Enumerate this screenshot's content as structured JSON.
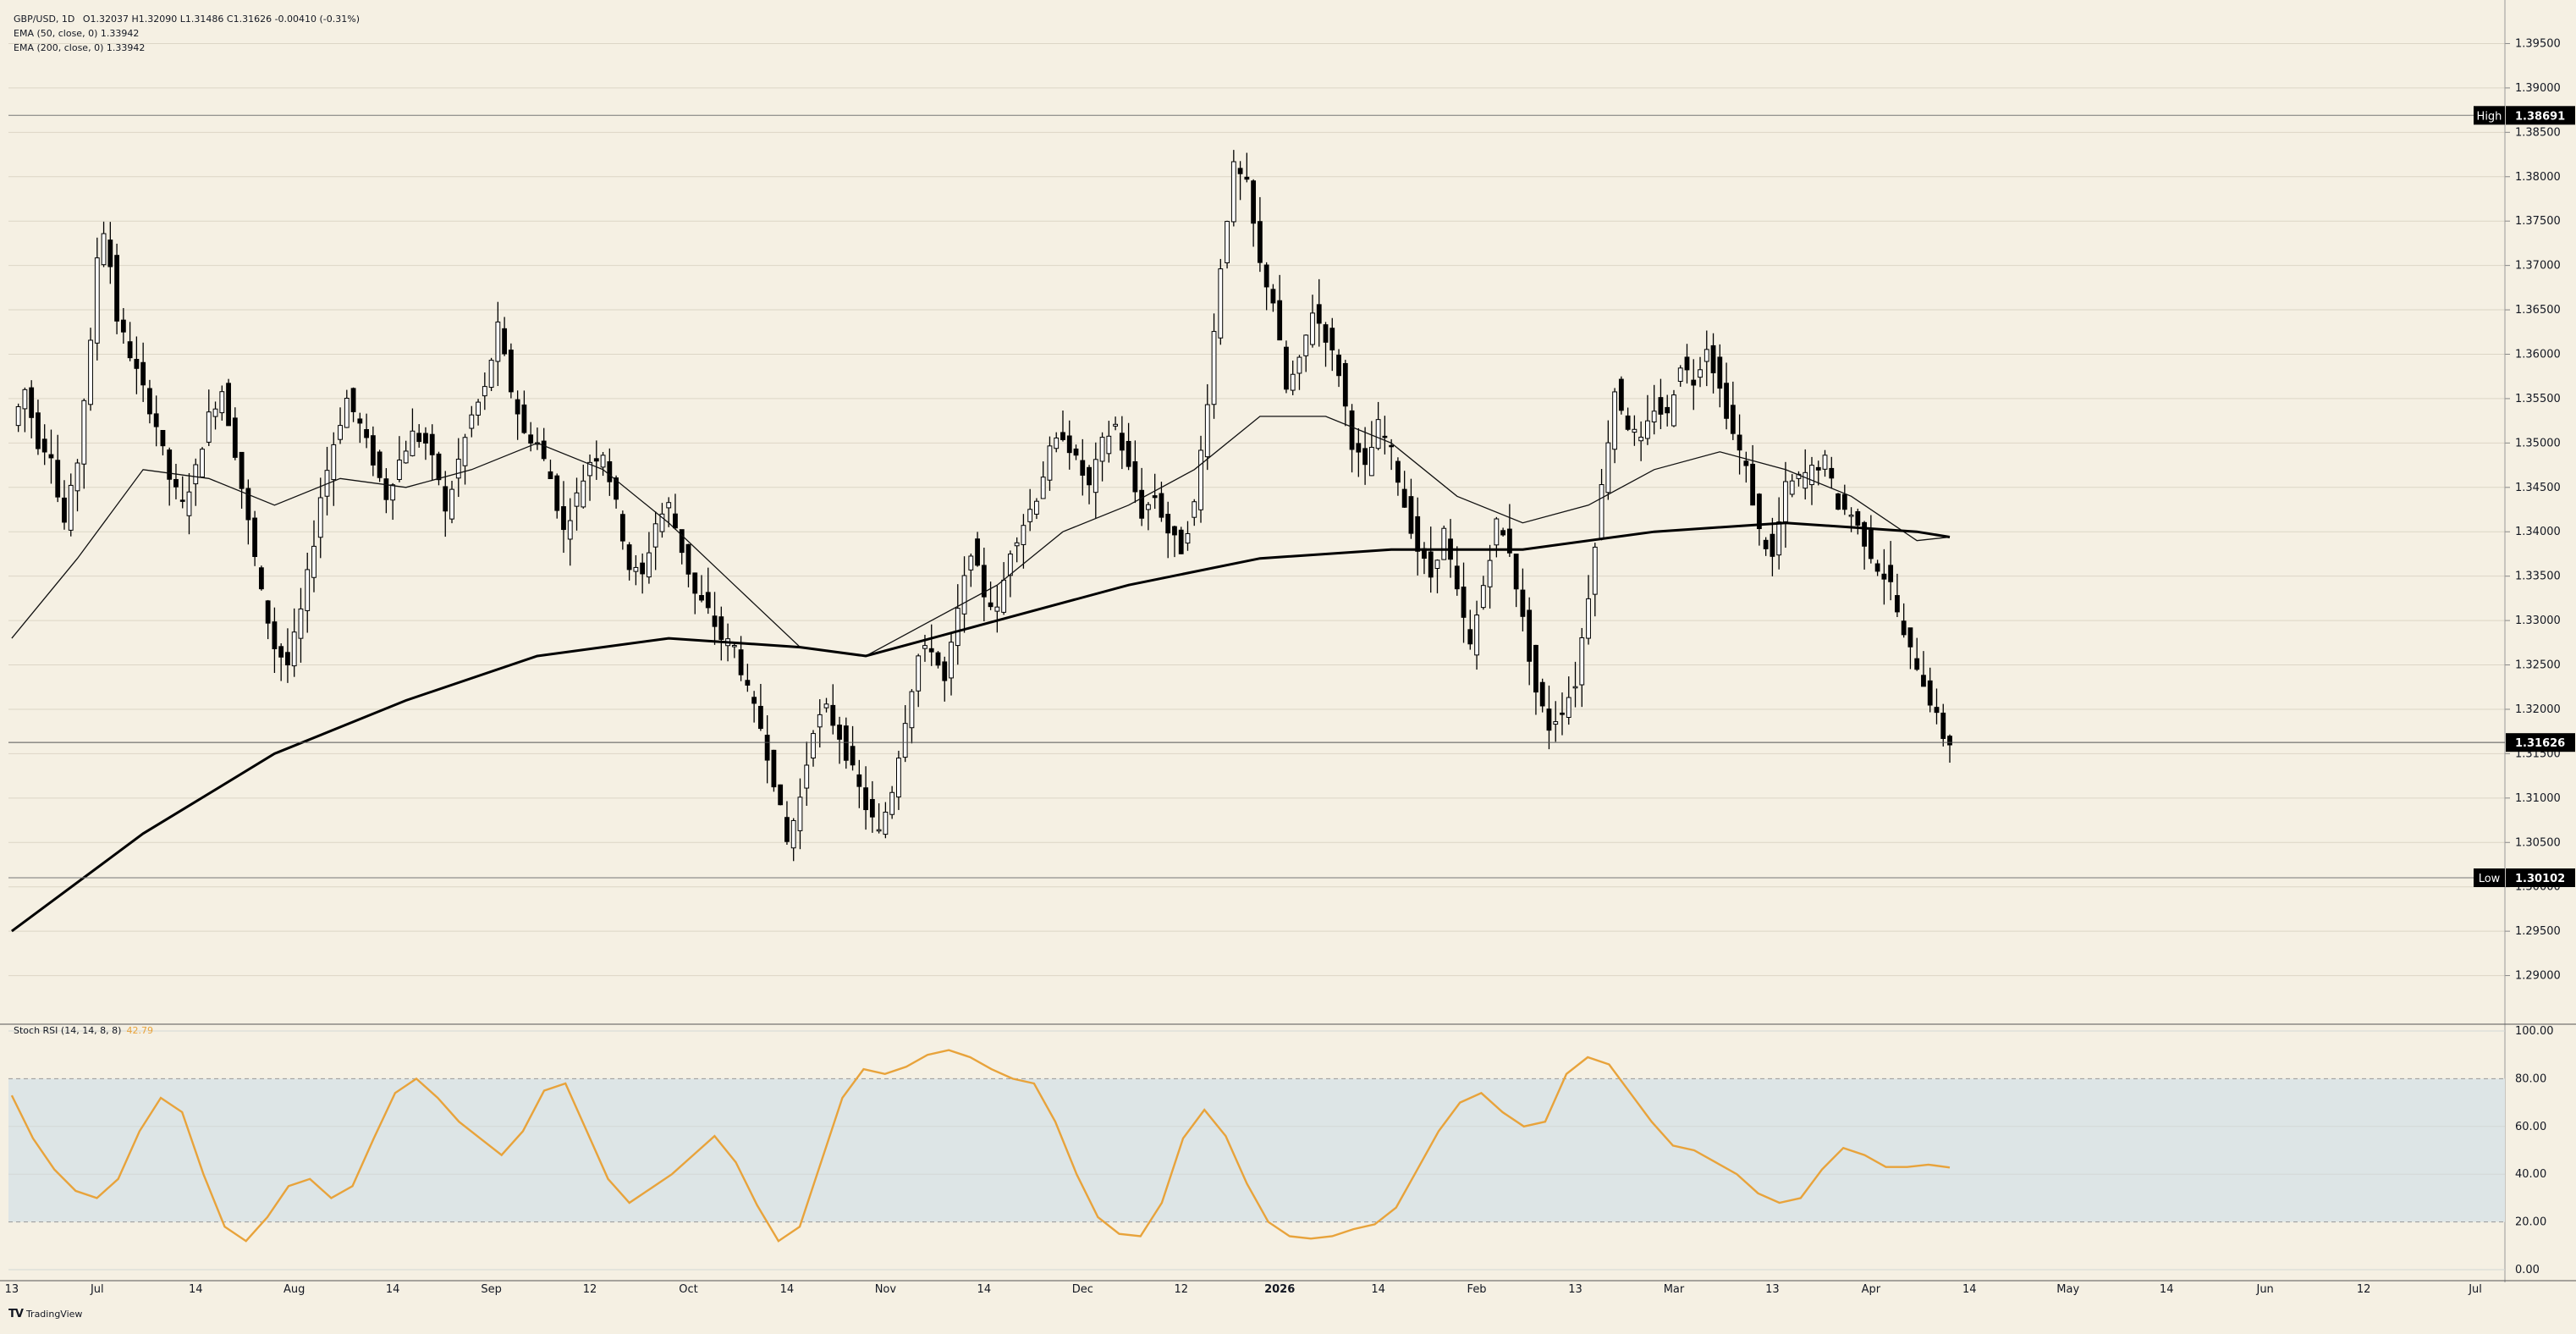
{
  "header": {
    "symbol": "GBP/USD, 1D",
    "ohlc": "O1.32037  H1.32090  L1.31486  C1.31626  -0.00410 (-0.31%)",
    "ema50": "EMA (50, close, 0)  1.33942",
    "ema200": "EMA (200, close, 0)  1.33942"
  },
  "rsi_panel": {
    "title": "Stoch RSI (14, 14, 8, 8)",
    "value": "42.79"
  },
  "brand": {
    "logo": "TV",
    "name": "TradingView"
  },
  "colors": {
    "background": "#f5f0e3",
    "candle_up": "#ffffff",
    "candle_down": "#000000",
    "rsi_line": "#e8a33b",
    "rsi_band": "#dde5e6"
  },
  "chart_data": [
    {
      "type": "candlestick",
      "ylim": [
        1.285,
        1.398
      ],
      "price_ticks": [
        "1.39500",
        "1.39000",
        "1.38500",
        "1.38000",
        "1.37500",
        "1.37000",
        "1.36500",
        "1.36000",
        "1.35500",
        "1.35000",
        "1.34500",
        "1.34000",
        "1.33500",
        "1.33000",
        "1.32500",
        "1.32000",
        "1.31500",
        "1.31000",
        "1.30500",
        "1.30000",
        "1.29500",
        "1.29000"
      ],
      "tick_values": [
        1.395,
        1.39,
        1.385,
        1.38,
        1.375,
        1.37,
        1.365,
        1.36,
        1.355,
        1.35,
        1.345,
        1.34,
        1.335,
        1.33,
        1.325,
        1.32,
        1.315,
        1.31,
        1.305,
        1.3,
        1.295,
        1.29
      ],
      "high_label": "High",
      "high_value": "1.38691",
      "high": 1.38691,
      "low_label": "Low",
      "low_value": "1.30102",
      "low": 1.30102,
      "last_value": "1.31626",
      "last": 1.31626,
      "x_labels": [
        "13",
        "Jul",
        "14",
        "Aug",
        "14",
        "Sep",
        "12",
        "Oct",
        "14",
        "Nov",
        "14",
        "Dec",
        "12",
        "2026",
        "14",
        "Feb",
        "13",
        "Mar",
        "13",
        "Apr",
        "14",
        "May",
        "14",
        "Jun",
        "12",
        "Jul"
      ],
      "x_label_index": [
        0,
        13,
        28,
        43,
        58,
        73,
        88,
        103,
        118,
        133,
        148,
        163,
        178,
        193,
        208,
        223,
        238,
        253,
        268,
        283,
        298,
        313,
        328,
        343,
        358,
        375
      ],
      "close_path": [
        [
          0,
          1.352
        ],
        [
          2,
          1.356
        ],
        [
          4,
          1.35
        ],
        [
          6,
          1.349
        ],
        [
          7,
          1.344
        ],
        [
          8,
          1.341
        ],
        [
          10,
          1.348
        ],
        [
          11,
          1.355
        ],
        [
          12,
          1.361
        ],
        [
          13,
          1.371
        ],
        [
          14,
          1.374
        ],
        [
          15,
          1.37
        ],
        [
          16,
          1.364
        ],
        [
          18,
          1.36
        ],
        [
          20,
          1.356
        ],
        [
          22,
          1.352
        ],
        [
          24,
          1.346
        ],
        [
          26,
          1.343
        ],
        [
          28,
          1.347
        ],
        [
          30,
          1.353
        ],
        [
          32,
          1.356
        ],
        [
          34,
          1.349
        ],
        [
          36,
          1.341
        ],
        [
          38,
          1.333
        ],
        [
          40,
          1.327
        ],
        [
          42,
          1.325
        ],
        [
          44,
          1.331
        ],
        [
          46,
          1.339
        ],
        [
          47,
          1.344
        ],
        [
          49,
          1.35
        ],
        [
          51,
          1.355
        ],
        [
          53,
          1.352
        ],
        [
          55,
          1.348
        ],
        [
          57,
          1.344
        ],
        [
          59,
          1.348
        ],
        [
          61,
          1.351
        ],
        [
          63,
          1.35
        ],
        [
          65,
          1.346
        ],
        [
          66,
          1.342
        ],
        [
          68,
          1.348
        ],
        [
          70,
          1.353
        ],
        [
          72,
          1.356
        ],
        [
          74,
          1.363
        ],
        [
          76,
          1.356
        ],
        [
          78,
          1.351
        ],
        [
          80,
          1.35
        ],
        [
          82,
          1.346
        ],
        [
          84,
          1.34
        ],
        [
          86,
          1.344
        ],
        [
          88,
          1.348
        ],
        [
          90,
          1.349
        ],
        [
          92,
          1.343
        ],
        [
          94,
          1.336
        ],
        [
          96,
          1.335
        ],
        [
          98,
          1.341
        ],
        [
          100,
          1.343
        ],
        [
          102,
          1.338
        ],
        [
          104,
          1.333
        ],
        [
          106,
          1.331
        ],
        [
          108,
          1.328
        ],
        [
          110,
          1.327
        ],
        [
          112,
          1.322
        ],
        [
          114,
          1.318
        ],
        [
          116,
          1.312
        ],
        [
          118,
          1.305
        ],
        [
          120,
          1.31
        ],
        [
          122,
          1.318
        ],
        [
          124,
          1.32
        ],
        [
          126,
          1.317
        ],
        [
          128,
          1.313
        ],
        [
          130,
          1.309
        ],
        [
          132,
          1.306
        ],
        [
          134,
          1.311
        ],
        [
          136,
          1.319
        ],
        [
          138,
          1.326
        ],
        [
          140,
          1.327
        ],
        [
          142,
          1.323
        ],
        [
          144,
          1.331
        ],
        [
          146,
          1.338
        ],
        [
          148,
          1.333
        ],
        [
          150,
          1.331
        ],
        [
          152,
          1.338
        ],
        [
          154,
          1.341
        ],
        [
          156,
          1.344
        ],
        [
          158,
          1.349
        ],
        [
          160,
          1.351
        ],
        [
          162,
          1.348
        ],
        [
          164,
          1.345
        ],
        [
          166,
          1.35
        ],
        [
          168,
          1.352
        ],
        [
          170,
          1.347
        ],
        [
          172,
          1.342
        ],
        [
          174,
          1.344
        ],
        [
          176,
          1.34
        ],
        [
          178,
          1.338
        ],
        [
          180,
          1.343
        ],
        [
          182,
          1.355
        ],
        [
          184,
          1.37
        ],
        [
          186,
          1.381
        ],
        [
          188,
          1.379
        ],
        [
          190,
          1.37
        ],
        [
          192,
          1.366
        ],
        [
          194,
          1.356
        ],
        [
          196,
          1.359
        ],
        [
          198,
          1.365
        ],
        [
          200,
          1.362
        ],
        [
          202,
          1.358
        ],
        [
          204,
          1.35
        ],
        [
          206,
          1.347
        ],
        [
          208,
          1.352
        ],
        [
          210,
          1.349
        ],
        [
          212,
          1.343
        ],
        [
          214,
          1.338
        ],
        [
          216,
          1.335
        ],
        [
          218,
          1.34
        ],
        [
          220,
          1.333
        ],
        [
          222,
          1.327
        ],
        [
          224,
          1.334
        ],
        [
          226,
          1.341
        ],
        [
          228,
          1.338
        ],
        [
          230,
          1.33
        ],
        [
          232,
          1.322
        ],
        [
          234,
          1.318
        ],
        [
          236,
          1.32
        ],
        [
          238,
          1.323
        ],
        [
          240,
          1.333
        ],
        [
          242,
          1.345
        ],
        [
          244,
          1.356
        ],
        [
          246,
          1.352
        ],
        [
          248,
          1.35
        ],
        [
          250,
          1.354
        ],
        [
          252,
          1.353
        ],
        [
          254,
          1.359
        ],
        [
          256,
          1.357
        ],
        [
          258,
          1.361
        ],
        [
          260,
          1.356
        ],
        [
          262,
          1.351
        ],
        [
          264,
          1.347
        ],
        [
          266,
          1.34
        ],
        [
          268,
          1.337
        ],
        [
          270,
          1.345
        ],
        [
          272,
          1.346
        ],
        [
          274,
          1.347
        ],
        [
          276,
          1.348
        ],
        [
          278,
          1.343
        ],
        [
          280,
          1.342
        ],
        [
          282,
          1.339
        ],
        [
          284,
          1.336
        ],
        [
          286,
          1.334
        ],
        [
          288,
          1.328
        ],
        [
          290,
          1.325
        ],
        [
          292,
          1.321
        ],
        [
          294,
          1.317
        ],
        [
          295,
          1.3163
        ]
      ],
      "ema50_path": [
        [
          0,
          1.328
        ],
        [
          10,
          1.337
        ],
        [
          20,
          1.347
        ],
        [
          30,
          1.346
        ],
        [
          40,
          1.343
        ],
        [
          50,
          1.346
        ],
        [
          60,
          1.345
        ],
        [
          70,
          1.347
        ],
        [
          80,
          1.35
        ],
        [
          90,
          1.347
        ],
        [
          100,
          1.341
        ],
        [
          110,
          1.334
        ],
        [
          120,
          1.327
        ],
        [
          130,
          1.326
        ],
        [
          140,
          1.33
        ],
        [
          150,
          1.334
        ],
        [
          160,
          1.34
        ],
        [
          170,
          1.343
        ],
        [
          180,
          1.347
        ],
        [
          190,
          1.353
        ],
        [
          200,
          1.353
        ],
        [
          210,
          1.35
        ],
        [
          220,
          1.344
        ],
        [
          230,
          1.341
        ],
        [
          240,
          1.343
        ],
        [
          250,
          1.347
        ],
        [
          260,
          1.349
        ],
        [
          270,
          1.347
        ],
        [
          280,
          1.344
        ],
        [
          290,
          1.339
        ],
        [
          295,
          1.3394
        ]
      ],
      "ema200_path": [
        [
          0,
          1.295
        ],
        [
          20,
          1.306
        ],
        [
          40,
          1.315
        ],
        [
          60,
          1.321
        ],
        [
          80,
          1.326
        ],
        [
          100,
          1.328
        ],
        [
          120,
          1.327
        ],
        [
          130,
          1.326
        ],
        [
          150,
          1.33
        ],
        [
          170,
          1.334
        ],
        [
          190,
          1.337
        ],
        [
          210,
          1.338
        ],
        [
          230,
          1.338
        ],
        [
          250,
          1.34
        ],
        [
          270,
          1.341
        ],
        [
          290,
          1.34
        ],
        [
          295,
          1.3394
        ]
      ]
    },
    {
      "type": "line",
      "title": "Stoch RSI (14, 14, 8, 8)",
      "ylim": [
        0,
        100
      ],
      "y_ticks": [
        "100.00",
        "80.00",
        "60.00",
        "40.00",
        "20.00",
        "0.00"
      ],
      "y_tick_values": [
        100,
        80,
        60,
        40,
        20,
        0
      ],
      "band": [
        20,
        80
      ],
      "values": [
        73,
        55,
        42,
        33,
        30,
        38,
        58,
        72,
        66,
        40,
        18,
        12,
        22,
        35,
        38,
        30,
        35,
        55,
        74,
        80,
        72,
        62,
        55,
        48,
        58,
        75,
        78,
        58,
        38,
        28,
        34,
        40,
        48,
        56,
        45,
        27,
        12,
        18,
        45,
        72,
        84,
        82,
        85,
        90,
        92,
        89,
        84,
        80,
        78,
        62,
        40,
        22,
        15,
        14,
        28,
        55,
        67,
        56,
        36,
        20,
        14,
        13,
        14,
        17,
        19,
        26,
        42,
        58,
        70,
        74,
        66,
        60,
        62,
        82,
        89,
        86,
        74,
        62,
        52,
        50,
        45,
        40,
        32,
        28,
        30,
        42,
        51,
        48,
        43,
        43,
        44,
        42.79
      ]
    }
  ]
}
